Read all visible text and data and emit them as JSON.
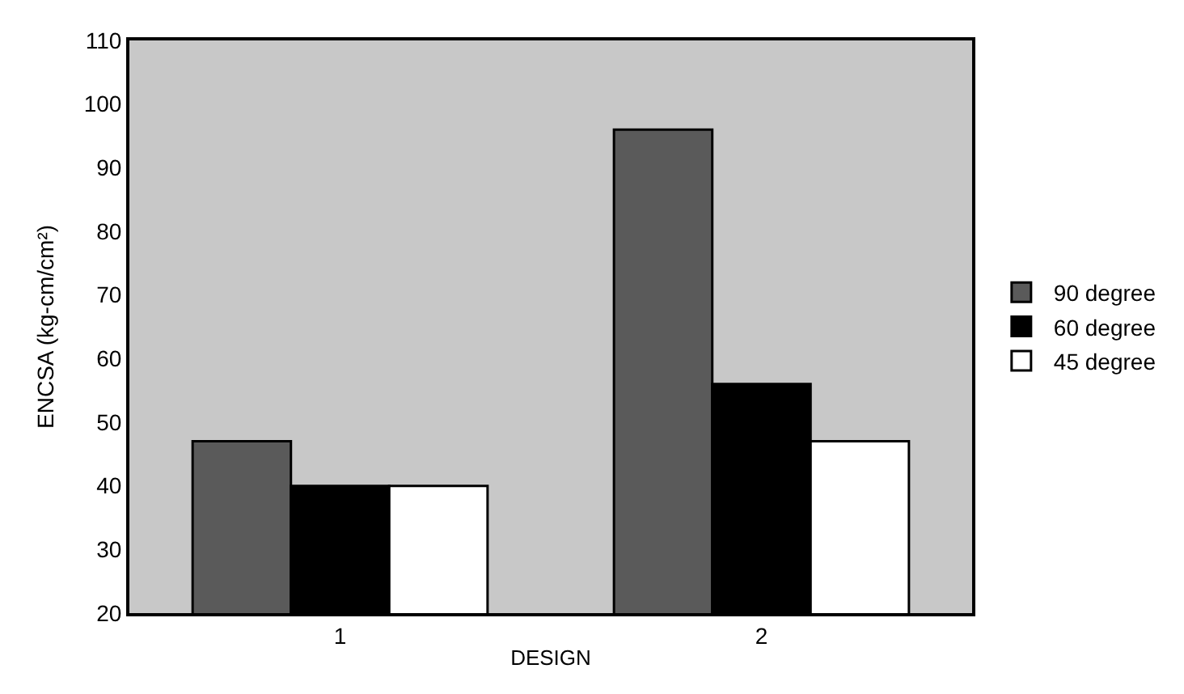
{
  "chart_data": {
    "type": "bar",
    "xlabel": "DESIGN",
    "ylabel": "ENCSA (kg-cm/cm²)",
    "categories": [
      "1",
      "2"
    ],
    "series": [
      {
        "name": "90 degree",
        "color": "#5a5a5a",
        "values": [
          47,
          96
        ]
      },
      {
        "name": "60 degree",
        "color": "#000000",
        "values": [
          40,
          56
        ]
      },
      {
        "name": "45 degree",
        "color": "#ffffff",
        "values": [
          40,
          47
        ]
      }
    ],
    "ylim": [
      20,
      110
    ],
    "yticks": [
      20,
      30,
      40,
      50,
      60,
      70,
      80,
      90,
      100,
      110
    ],
    "grid": false,
    "legend": "right"
  }
}
